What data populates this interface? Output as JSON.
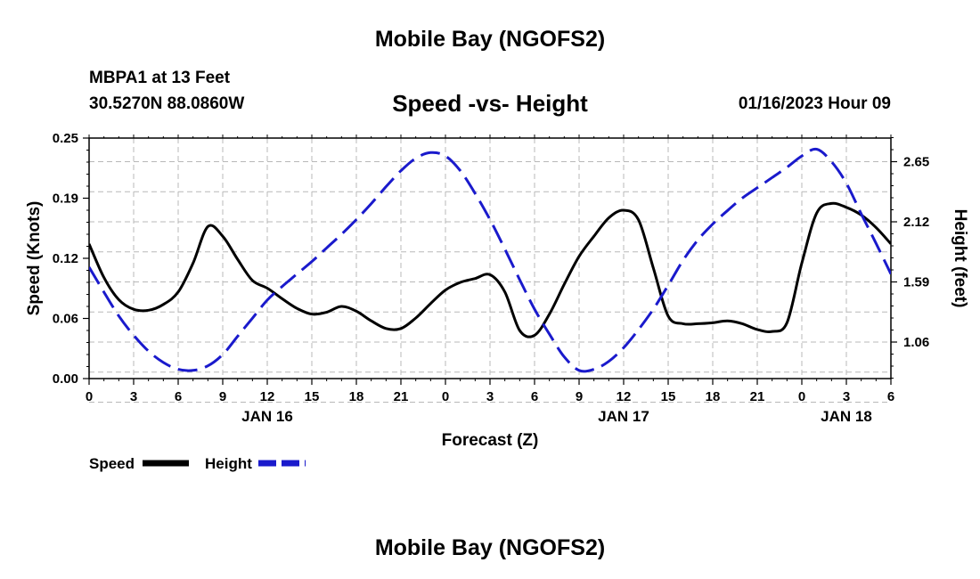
{
  "header": {
    "title": "Mobile Bay (NGOFS2)",
    "station": "MBPA1 at 13 Feet",
    "coords": "30.5270N  88.0860W",
    "chart_title": "Speed -vs- Height",
    "datetime": "01/16/2023 Hour 09"
  },
  "footer": {
    "title": "Mobile Bay (NGOFS2)"
  },
  "chart_data": {
    "type": "line",
    "title": "Speed -vs- Height",
    "xlabel": "Forecast (Z)",
    "ylabel": "Speed (Knots)",
    "ylabel_right": "Height (feet)",
    "x_ticks": [
      "0",
      "3",
      "6",
      "9",
      "12",
      "15",
      "18",
      "21",
      "0",
      "3",
      "6",
      "9",
      "12",
      "15",
      "18",
      "21",
      "0",
      "3",
      "6"
    ],
    "x_day_labels": [
      {
        "label": "JAN 16",
        "hour": 12
      },
      {
        "label": "JAN 17",
        "hour": 36
      },
      {
        "label": "JAN 18",
        "hour": 51
      }
    ],
    "xlim": [
      0,
      54
    ],
    "y_left": {
      "ticks": [
        "0.00",
        "0.06",
        "0.12",
        "0.19",
        "0.25"
      ],
      "lim": [
        0,
        0.25
      ]
    },
    "y_right": {
      "ticks": [
        "1.06",
        "1.59",
        "2.12",
        "2.65"
      ]
    },
    "grid": true,
    "legend": "bottom-left",
    "series": [
      {
        "name": "Speed",
        "axis": "left",
        "color": "#000000",
        "style": "solid",
        "x": [
          0,
          1,
          2,
          3,
          4,
          5,
          6,
          7,
          8,
          9,
          10,
          11,
          12,
          13,
          14,
          15,
          16,
          17,
          18,
          19,
          20,
          21,
          22,
          23,
          24,
          25,
          26,
          27,
          28,
          29,
          30,
          31,
          32,
          33,
          34,
          35,
          36,
          37,
          38,
          39,
          40,
          41,
          42,
          43,
          44,
          45,
          46,
          47,
          48,
          49,
          50,
          51,
          52,
          53,
          54
        ],
        "values": [
          0.14,
          0.105,
          0.082,
          0.072,
          0.071,
          0.077,
          0.09,
          0.12,
          0.158,
          0.148,
          0.124,
          0.102,
          0.094,
          0.083,
          0.073,
          0.067,
          0.069,
          0.075,
          0.07,
          0.06,
          0.052,
          0.052,
          0.063,
          0.078,
          0.092,
          0.1,
          0.104,
          0.108,
          0.09,
          0.05,
          0.045,
          0.067,
          0.098,
          0.127,
          0.148,
          0.167,
          0.175,
          0.165,
          0.115,
          0.065,
          0.057,
          0.057,
          0.058,
          0.06,
          0.057,
          0.051,
          0.049,
          0.058,
          0.12,
          0.172,
          0.182,
          0.178,
          0.17,
          0.157,
          0.14
        ]
      },
      {
        "name": "Height",
        "axis": "right",
        "color": "#1a1acc",
        "style": "dashed",
        "x": [
          0,
          1,
          2,
          3,
          4,
          5,
          6,
          7,
          8,
          9,
          10,
          11,
          12,
          13,
          14,
          15,
          16,
          17,
          18,
          19,
          20,
          21,
          22,
          23,
          24,
          25,
          26,
          27,
          28,
          29,
          30,
          31,
          32,
          33,
          34,
          35,
          36,
          37,
          38,
          39,
          40,
          41,
          42,
          43,
          44,
          45,
          46,
          47,
          48,
          49,
          50,
          51,
          52,
          53,
          54
        ],
        "values": [
          1.72,
          1.5,
          1.29,
          1.12,
          0.98,
          0.88,
          0.82,
          0.81,
          0.85,
          0.95,
          1.11,
          1.27,
          1.43,
          1.55,
          1.66,
          1.77,
          1.89,
          2.01,
          2.14,
          2.28,
          2.43,
          2.57,
          2.68,
          2.73,
          2.7,
          2.57,
          2.37,
          2.14,
          1.88,
          1.61,
          1.35,
          1.13,
          0.93,
          0.81,
          0.82,
          0.89,
          1.01,
          1.17,
          1.35,
          1.56,
          1.78,
          1.96,
          2.1,
          2.22,
          2.33,
          2.42,
          2.51,
          2.6,
          2.7,
          2.76,
          2.65,
          2.46,
          2.19,
          1.93,
          1.66
        ]
      }
    ]
  }
}
